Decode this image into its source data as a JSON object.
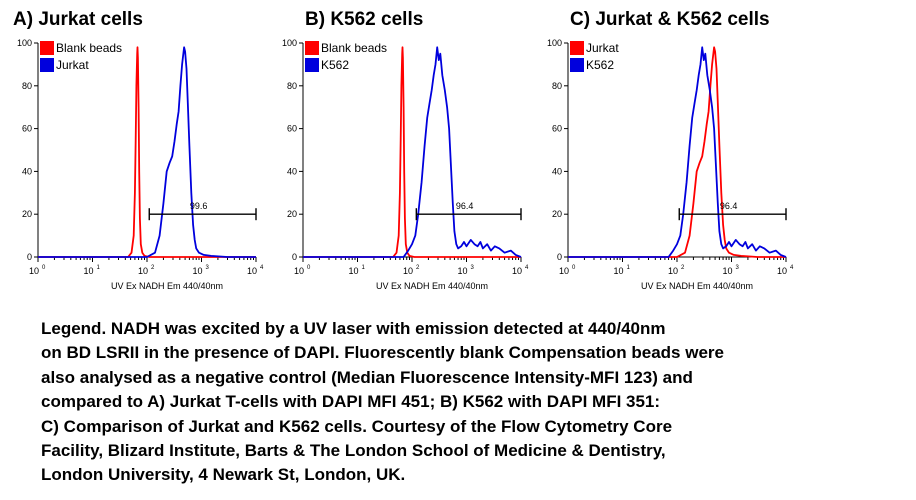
{
  "chart_data": [
    {
      "type": "line",
      "title": "A) Jurkat cells",
      "xlabel": "UV Ex NADH Em 440/40nm",
      "ylabel": "",
      "xscale": "log",
      "xlim": [
        1,
        10000
      ],
      "ylim": [
        0,
        100
      ],
      "yticks": [
        "0",
        "20",
        "40",
        "60",
        "80",
        "100"
      ],
      "xticks": [
        {
          "base": "10",
          "exp": "0"
        },
        {
          "base": "10",
          "exp": "1"
        },
        {
          "base": "10",
          "exp": "2"
        },
        {
          "base": "10",
          "exp": "3"
        },
        {
          "base": "10",
          "exp": "4"
        }
      ],
      "legend": [
        {
          "label": "Blank beads",
          "color": "#ff0000"
        },
        {
          "label": "Jurkat",
          "color": "#0000dd"
        }
      ],
      "gate": {
        "label": "99.6",
        "x_start": 110,
        "x_end": 10000,
        "y": 20
      },
      "series": [
        {
          "name": "Blank beads",
          "color": "#ff0000",
          "x": [
            1,
            45,
            52,
            57,
            60,
            62,
            64,
            66,
            67,
            68,
            70,
            72,
            74,
            77,
            82,
            90,
            110,
            10000
          ],
          "y": [
            0,
            0,
            2,
            10,
            30,
            55,
            80,
            95,
            98,
            93,
            70,
            40,
            18,
            6,
            2,
            0.5,
            0,
            0
          ]
        },
        {
          "name": "Jurkat",
          "color": "#0000dd",
          "x": [
            1,
            100,
            140,
            170,
            200,
            230,
            260,
            290,
            320,
            350,
            380,
            410,
            440,
            460,
            480,
            500,
            530,
            560,
            600,
            650,
            700,
            750,
            800,
            900,
            1100,
            1500,
            3000,
            10000
          ],
          "y": [
            0,
            0,
            2,
            10,
            25,
            40,
            44,
            47,
            54,
            62,
            68,
            80,
            90,
            94,
            98,
            96,
            88,
            72,
            52,
            30,
            15,
            8,
            4,
            2,
            1,
            0.5,
            0,
            0
          ]
        }
      ]
    },
    {
      "type": "line",
      "title": "B) K562 cells",
      "xlabel": "UV Ex NADH Em 440/40nm",
      "ylabel": "",
      "xscale": "log",
      "xlim": [
        1,
        10000
      ],
      "ylim": [
        0,
        100
      ],
      "yticks": [
        "0",
        "20",
        "40",
        "60",
        "80",
        "100"
      ],
      "xticks": [
        {
          "base": "10",
          "exp": "0"
        },
        {
          "base": "10",
          "exp": "1"
        },
        {
          "base": "10",
          "exp": "2"
        },
        {
          "base": "10",
          "exp": "3"
        },
        {
          "base": "10",
          "exp": "4"
        }
      ],
      "legend": [
        {
          "label": "Blank beads",
          "color": "#ff0000"
        },
        {
          "label": "K562",
          "color": "#0000dd"
        }
      ],
      "gate": {
        "label": "96.4",
        "x_start": 120,
        "x_end": 10000,
        "y": 20
      },
      "series": [
        {
          "name": "Blank beads",
          "color": "#ff0000",
          "x": [
            1,
            45,
            52,
            57,
            60,
            62,
            64,
            66,
            67,
            68,
            70,
            72,
            74,
            77,
            82,
            90,
            110,
            10000
          ],
          "y": [
            0,
            0,
            2,
            10,
            30,
            55,
            80,
            95,
            98,
            93,
            70,
            40,
            18,
            6,
            2,
            0.5,
            0,
            0
          ]
        },
        {
          "name": "K562",
          "color": "#0000dd",
          "x": [
            1,
            70,
            85,
            100,
            115,
            130,
            150,
            170,
            190,
            210,
            230,
            250,
            270,
            290,
            310,
            330,
            360,
            400,
            440,
            480,
            520,
            560,
            600,
            650,
            700,
            800,
            900,
            1000,
            1200,
            1400,
            1600,
            1800,
            2000,
            2400,
            2800,
            3300,
            4000,
            5000,
            6500,
            8000,
            10000
          ],
          "y": [
            0,
            0,
            3,
            6,
            10,
            20,
            35,
            52,
            65,
            72,
            78,
            85,
            90,
            98,
            92,
            95,
            85,
            78,
            70,
            60,
            42,
            25,
            12,
            6,
            4,
            5,
            7,
            5,
            8,
            6,
            5,
            7,
            4,
            6,
            3,
            5,
            4,
            2,
            3,
            1,
            0
          ]
        }
      ]
    },
    {
      "type": "line",
      "title": "C) Jurkat & K562 cells",
      "xlabel": "UV Ex NADH Em 440/40nm",
      "ylabel": "",
      "xscale": "log",
      "xlim": [
        1,
        10000
      ],
      "ylim": [
        0,
        100
      ],
      "yticks": [
        "0",
        "20",
        "40",
        "60",
        "80",
        "100"
      ],
      "xticks": [
        {
          "base": "10",
          "exp": "0"
        },
        {
          "base": "10",
          "exp": "1"
        },
        {
          "base": "10",
          "exp": "2"
        },
        {
          "base": "10",
          "exp": "3"
        },
        {
          "base": "10",
          "exp": "4"
        }
      ],
      "legend": [
        {
          "label": "Jurkat",
          "color": "#ff0000"
        },
        {
          "label": "K562",
          "color": "#0000dd"
        }
      ],
      "gate": {
        "label": "96.4",
        "x_start": 110,
        "x_end": 10000,
        "y": 20
      },
      "series": [
        {
          "name": "Jurkat",
          "color": "#ff0000",
          "x": [
            1,
            100,
            140,
            170,
            200,
            230,
            260,
            290,
            320,
            350,
            380,
            410,
            440,
            460,
            480,
            500,
            530,
            560,
            600,
            650,
            700,
            750,
            800,
            900,
            1100,
            1500,
            3000,
            10000
          ],
          "y": [
            0,
            0,
            2,
            10,
            25,
            40,
            44,
            47,
            54,
            62,
            68,
            80,
            90,
            94,
            98,
            96,
            88,
            72,
            52,
            30,
            15,
            8,
            4,
            2,
            1,
            0.5,
            0,
            0
          ]
        },
        {
          "name": "K562",
          "color": "#0000dd",
          "x": [
            1,
            70,
            85,
            100,
            115,
            130,
            150,
            170,
            190,
            210,
            230,
            250,
            270,
            290,
            310,
            330,
            360,
            400,
            440,
            480,
            520,
            560,
            600,
            650,
            700,
            800,
            900,
            1000,
            1200,
            1400,
            1600,
            1800,
            2000,
            2400,
            2800,
            3300,
            4000,
            5000,
            6500,
            8000,
            10000
          ],
          "y": [
            0,
            0,
            3,
            6,
            10,
            20,
            35,
            52,
            65,
            72,
            78,
            85,
            90,
            98,
            92,
            95,
            85,
            78,
            70,
            60,
            42,
            25,
            12,
            6,
            4,
            5,
            7,
            5,
            8,
            6,
            5,
            7,
            4,
            6,
            3,
            5,
            4,
            2,
            3,
            1,
            0
          ]
        }
      ]
    }
  ],
  "caption": {
    "lines": [
      "Legend. NADH was excited by a UV laser with emission detected at 440/40nm",
      "on BD LSRII in the presence of DAPI. Fluorescently blank Compensation beads were",
      "also analysed as a negative control (Median Fluorescence Intensity-MFI 123) and",
      "compared to A) Jurkat T-cells with DAPI MFI 451; B) K562 with DAPI MFI 351:",
      "C) Comparison of Jurkat and K562 cells. Courtesy of the Flow Cytometry Core",
      "Facility, Blizard Institute, Barts & The London School of Medicine & Dentistry,",
      "London University,  4 Newark St, London, UK."
    ]
  }
}
